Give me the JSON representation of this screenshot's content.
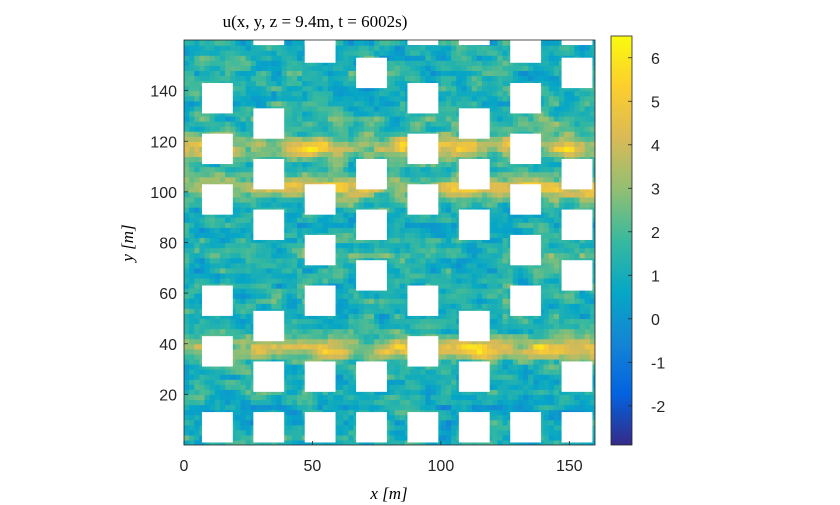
{
  "chart_data": {
    "type": "heatmap",
    "title": "u(x, y, z = 9.4m, t = 6002s)",
    "xlabel": "x [m]",
    "ylabel": "y [m]",
    "xlim": [
      0,
      160
    ],
    "ylim": [
      0,
      160
    ],
    "xticks": [
      0,
      50,
      100,
      150
    ],
    "yticks": [
      20,
      40,
      60,
      80,
      100,
      120,
      140
    ],
    "colorbar": {
      "range": [
        -2.9,
        6.5
      ],
      "ticks": [
        -2,
        -1,
        0,
        1,
        2,
        3,
        4,
        5,
        6
      ],
      "colormap": "parula",
      "stops": [
        "#352a87",
        "#0363e1",
        "#1485d4",
        "#06a7c6",
        "#38b99e",
        "#92bf73",
        "#d9ba56",
        "#fcce2e",
        "#f9fb0e"
      ]
    },
    "field_description_values": {
      "background_mean": 1.2,
      "high_streaks_y": [
        38,
        102,
        118
      ],
      "high_streak_peak": 4.8
    },
    "buildings": [
      {
        "x": 7,
        "y": 1
      },
      {
        "x": 27,
        "y": 1
      },
      {
        "x": 47,
        "y": 1
      },
      {
        "x": 67,
        "y": 1
      },
      {
        "x": 87,
        "y": 1
      },
      {
        "x": 107,
        "y": 1
      },
      {
        "x": 127,
        "y": 1
      },
      {
        "x": 147,
        "y": 1
      },
      {
        "x": 27,
        "y": 21
      },
      {
        "x": 47,
        "y": 21
      },
      {
        "x": 67,
        "y": 21
      },
      {
        "x": 107,
        "y": 21
      },
      {
        "x": 147,
        "y": 21
      },
      {
        "x": 7,
        "y": 31
      },
      {
        "x": 87,
        "y": 31
      },
      {
        "x": 27,
        "y": 41
      },
      {
        "x": 107,
        "y": 41
      },
      {
        "x": 7,
        "y": 51
      },
      {
        "x": 47,
        "y": 51
      },
      {
        "x": 87,
        "y": 51
      },
      {
        "x": 127,
        "y": 51
      },
      {
        "x": 67,
        "y": 61
      },
      {
        "x": 147,
        "y": 61
      },
      {
        "x": 47,
        "y": 71
      },
      {
        "x": 127,
        "y": 71
      },
      {
        "x": 27,
        "y": 81
      },
      {
        "x": 67,
        "y": 81
      },
      {
        "x": 107,
        "y": 81
      },
      {
        "x": 147,
        "y": 81
      },
      {
        "x": 7,
        "y": 91
      },
      {
        "x": 47,
        "y": 91
      },
      {
        "x": 87,
        "y": 91
      },
      {
        "x": 127,
        "y": 91
      },
      {
        "x": 27,
        "y": 101
      },
      {
        "x": 67,
        "y": 101
      },
      {
        "x": 107,
        "y": 101
      },
      {
        "x": 147,
        "y": 101
      },
      {
        "x": 7,
        "y": 111
      },
      {
        "x": 87,
        "y": 111
      },
      {
        "x": 127,
        "y": 111
      },
      {
        "x": 27,
        "y": 121
      },
      {
        "x": 107,
        "y": 121
      },
      {
        "x": 7,
        "y": 131
      },
      {
        "x": 87,
        "y": 131
      },
      {
        "x": 127,
        "y": 131
      },
      {
        "x": 67,
        "y": 141
      },
      {
        "x": 147,
        "y": 141
      },
      {
        "x": 47,
        "y": 151
      },
      {
        "x": 127,
        "y": 151
      }
    ],
    "building_size": 12,
    "top_partial_buildings_x": [
      27,
      47,
      87,
      107,
      147
    ]
  }
}
